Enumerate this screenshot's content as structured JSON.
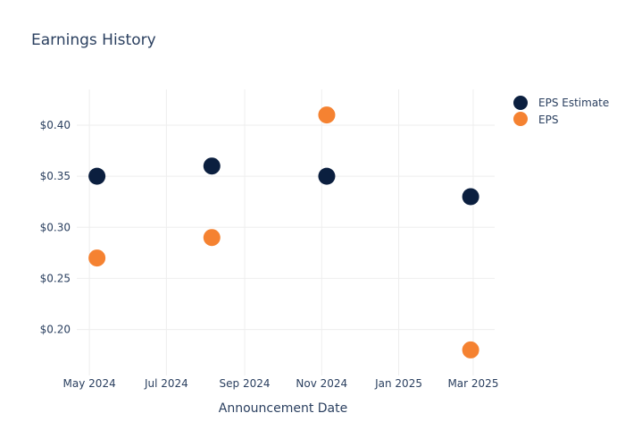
{
  "chart_data": {
    "type": "scatter",
    "title": "Earnings History",
    "xlabel": "Announcement Date",
    "ylabel": "",
    "x_ticks": [
      "2024-05-01",
      "2024-07-01",
      "2024-09-01",
      "2024-11-01",
      "2025-01-01",
      "2025-03-01"
    ],
    "x_tick_labels": [
      "May 2024",
      "Jul 2024",
      "Sep 2024",
      "Nov 2024",
      "Jan 2025",
      "Mar 2025"
    ],
    "xlim": [
      "2024-04-21",
      "2025-03-18"
    ],
    "y_ticks": [
      0.2,
      0.25,
      0.3,
      0.35,
      0.4
    ],
    "y_tick_labels": [
      "$0.20",
      "$0.25",
      "$0.30",
      "$0.35",
      "$0.40"
    ],
    "ylim": [
      0.155,
      0.435
    ],
    "grid": true,
    "legend_position": "top-right",
    "series": [
      {
        "name": "EPS Estimate",
        "color": "#0b1f3f",
        "x": [
          "2024-05-07",
          "2024-08-06",
          "2024-11-05",
          "2025-02-27"
        ],
        "y": [
          0.35,
          0.36,
          0.35,
          0.33
        ]
      },
      {
        "name": "EPS",
        "color": "#f58231",
        "x": [
          "2024-05-07",
          "2024-08-06",
          "2024-11-05",
          "2025-02-27"
        ],
        "y": [
          0.27,
          0.29,
          0.41,
          0.18
        ]
      }
    ]
  }
}
